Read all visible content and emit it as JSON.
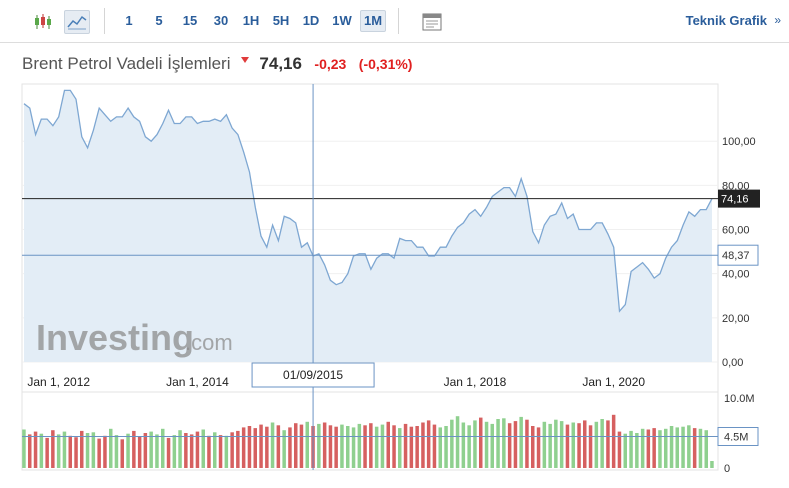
{
  "toolbar": {
    "chart_types": [
      "candlestick-icon",
      "area-chart-icon"
    ],
    "timeframes": [
      "1",
      "5",
      "15",
      "30",
      "1H",
      "5H",
      "1D",
      "1W",
      "1M"
    ],
    "active_timeframe": "1M",
    "technical_link": "Teknik Grafik",
    "technical_arrow": "»"
  },
  "header": {
    "title": "Brent Petrol Vadeli İşlemleri",
    "price": "74,16",
    "change": "-0,23",
    "change_pct": "(-0,31%)"
  },
  "watermark": {
    "brand": "Investing",
    "suffix": ".com"
  },
  "crosshair": {
    "date_label": "01/09/2015",
    "price_label": "48,37",
    "price_value": 48.37
  },
  "last_price_label": "74,16",
  "volume_axis": {
    "ticks": [
      "10.0M",
      "4.5M",
      "0"
    ]
  },
  "colors": {
    "line": "#7ea7d2",
    "area": "#e3edf6",
    "up": "#8fd08f",
    "down": "#d66060",
    "link": "#2a5d9b",
    "loss": "#e02020"
  },
  "chart_data": {
    "type": "area",
    "title": "",
    "xlabel": "",
    "ylabel": "",
    "ylim": [
      0,
      125
    ],
    "y_ticks": [
      "100,00",
      "80,00",
      "60,00",
      "40,00",
      "20,00",
      "0,00"
    ],
    "x_ticks": [
      "Jan 1, 2012",
      "Jan 1, 2014",
      "Jan 1, 2018",
      "Jan 1, 2020"
    ],
    "x": [
      "2011-07",
      "2011-08",
      "2011-09",
      "2011-10",
      "2011-11",
      "2011-12",
      "2012-01",
      "2012-02",
      "2012-03",
      "2012-04",
      "2012-05",
      "2012-06",
      "2012-07",
      "2012-08",
      "2012-09",
      "2012-10",
      "2012-11",
      "2012-12",
      "2013-01",
      "2013-02",
      "2013-03",
      "2013-04",
      "2013-05",
      "2013-06",
      "2013-07",
      "2013-08",
      "2013-09",
      "2013-10",
      "2013-11",
      "2013-12",
      "2014-01",
      "2014-02",
      "2014-03",
      "2014-04",
      "2014-05",
      "2014-06",
      "2014-07",
      "2014-08",
      "2014-09",
      "2014-10",
      "2014-11",
      "2014-12",
      "2015-01",
      "2015-02",
      "2015-03",
      "2015-04",
      "2015-05",
      "2015-06",
      "2015-07",
      "2015-08",
      "2015-09",
      "2015-10",
      "2015-11",
      "2015-12",
      "2016-01",
      "2016-02",
      "2016-03",
      "2016-04",
      "2016-05",
      "2016-06",
      "2016-07",
      "2016-08",
      "2016-09",
      "2016-10",
      "2016-11",
      "2016-12",
      "2017-01",
      "2017-02",
      "2017-03",
      "2017-04",
      "2017-05",
      "2017-06",
      "2017-07",
      "2017-08",
      "2017-09",
      "2017-10",
      "2017-11",
      "2017-12",
      "2018-01",
      "2018-02",
      "2018-03",
      "2018-04",
      "2018-05",
      "2018-06",
      "2018-07",
      "2018-08",
      "2018-09",
      "2018-10",
      "2018-11",
      "2018-12",
      "2019-01",
      "2019-02",
      "2019-03",
      "2019-04",
      "2019-05",
      "2019-06",
      "2019-07",
      "2019-08",
      "2019-09",
      "2019-10",
      "2019-11",
      "2019-12",
      "2020-01",
      "2020-02",
      "2020-03",
      "2020-04",
      "2020-05",
      "2020-06",
      "2020-07",
      "2020-08",
      "2020-09",
      "2020-10",
      "2020-11",
      "2020-12",
      "2021-01",
      "2021-02",
      "2021-03",
      "2021-04",
      "2021-05",
      "2021-06"
    ],
    "values": [
      117,
      115,
      103,
      110,
      110,
      107,
      111,
      123,
      123,
      119,
      102,
      97,
      105,
      115,
      112,
      109,
      111,
      111,
      115,
      111,
      109,
      102,
      100,
      103,
      108,
      114,
      108,
      108,
      111,
      111,
      108,
      109,
      109,
      110,
      109,
      112,
      106,
      103,
      95,
      86,
      70,
      57,
      52,
      62,
      55,
      66,
      65,
      63,
      52,
      54,
      48,
      49,
      44,
      37,
      35,
      36,
      40,
      48,
      49,
      49,
      42,
      47,
      49,
      49,
      47,
      56,
      55,
      55,
      52,
      52,
      48,
      48,
      52,
      52,
      57,
      61,
      63,
      67,
      69,
      66,
      70,
      75,
      77,
      79,
      79,
      75,
      83,
      75,
      59,
      54,
      62,
      66,
      67,
      72,
      65,
      67,
      60,
      60,
      60,
      63,
      63,
      58,
      52,
      23,
      26,
      41,
      43,
      45,
      42,
      38,
      40,
      47,
      52,
      55,
      62,
      68,
      66,
      69,
      69,
      74
    ],
    "volume": {
      "unit": "M",
      "values": [
        5.5,
        4.8,
        5.2,
        4.9,
        4.3,
        5.4,
        4.8,
        5.2,
        4.6,
        4.4,
        5.3,
        5.0,
        5.1,
        4.2,
        4.6,
        5.6,
        4.7,
        4.1,
        4.9,
        5.3,
        4.5,
        5.0,
        5.2,
        4.8,
        5.6,
        4.3,
        4.7,
        5.4,
        5.0,
        4.8,
        5.2,
        5.5,
        4.6,
        5.1,
        4.7,
        4.6,
        5.1,
        5.3,
        5.8,
        6.0,
        5.7,
        6.2,
        5.9,
        6.5,
        6.1,
        5.4,
        5.8,
        6.4,
        6.2,
        6.6,
        6.0,
        6.3,
        6.5,
        6.1,
        5.9,
        6.2,
        6.0,
        5.8,
        6.3,
        6.1,
        6.4,
        5.9,
        6.2,
        6.6,
        6.1,
        5.7,
        6.3,
        5.9,
        6.0,
        6.5,
        6.8,
        6.2,
        5.8,
        6.0,
        6.9,
        7.4,
        6.5,
        6.1,
        6.8,
        7.2,
        6.6,
        6.3,
        7.0,
        7.1,
        6.4,
        6.7,
        7.3,
        6.9,
        6.0,
        5.8,
        6.6,
        6.3,
        6.9,
        6.7,
        6.2,
        6.5,
        6.4,
        6.8,
        6.1,
        6.6,
        7.0,
        6.8,
        7.6,
        5.2,
        4.9,
        5.3,
        5.0,
        5.6,
        5.5,
        5.7,
        5.4,
        5.6,
        6.0,
        5.8,
        5.9,
        6.1,
        5.7,
        5.6,
        5.4,
        1.0
      ],
      "directions": [
        1,
        0,
        0,
        1,
        0,
        0,
        1,
        1,
        0,
        0,
        0,
        1,
        1,
        0,
        0,
        1,
        1,
        0,
        1,
        0,
        0,
        0,
        1,
        1,
        1,
        0,
        1,
        1,
        0,
        0,
        0,
        1,
        0,
        1,
        0,
        1,
        0,
        0,
        0,
        0,
        0,
        0,
        0,
        1,
        0,
        1,
        0,
        0,
        0,
        1,
        0,
        1,
        0,
        0,
        0,
        1,
        1,
        1,
        1,
        0,
        0,
        1,
        1,
        0,
        0,
        1,
        0,
        0,
        0,
        0,
        0,
        0,
        1,
        1,
        1,
        1,
        1,
        1,
        1,
        0,
        1,
        1,
        1,
        1,
        0,
        0,
        1,
        0,
        0,
        0,
        1,
        1,
        1,
        1,
        0,
        1,
        0,
        0,
        0,
        1,
        1,
        0,
        0,
        0,
        1,
        1,
        1,
        1,
        0,
        0,
        1,
        1,
        1,
        1,
        1,
        1,
        0,
        1,
        1,
        1
      ]
    }
  }
}
